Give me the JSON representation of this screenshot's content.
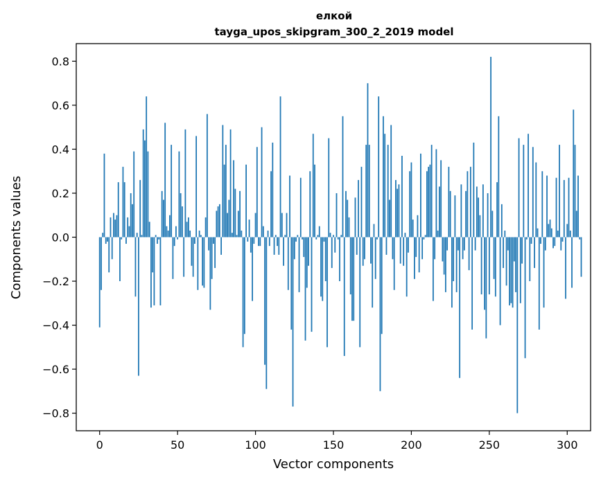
{
  "chart_data": {
    "type": "bar",
    "title": "елкой",
    "subtitle": "tayga_upos_skipgram_300_2_2019 model",
    "xlabel": "Vector components",
    "ylabel": "Components values",
    "xlim": [
      -15,
      315
    ],
    "ylim": [
      -0.88,
      0.88
    ],
    "xticks": [
      0,
      50,
      100,
      150,
      200,
      250,
      300
    ],
    "yticks": [
      -0.8,
      -0.6,
      -0.4,
      -0.2,
      0.0,
      0.2,
      0.4,
      0.6,
      0.8
    ],
    "ytick_labels": [
      "−0.8",
      "−0.6",
      "−0.4",
      "−0.2",
      "0.0",
      "0.2",
      "0.4",
      "0.6",
      "0.8"
    ],
    "bar_color": "#1f77b4",
    "values": [
      -0.41,
      -0.24,
      0.02,
      0.38,
      -0.03,
      -0.02,
      -0.16,
      0.09,
      -0.1,
      0.11,
      0.08,
      0.1,
      0.25,
      -0.2,
      -0.01,
      0.32,
      0.25,
      -0.03,
      0.09,
      0.05,
      0.2,
      0.15,
      0.39,
      -0.27,
      0.02,
      -0.63,
      0.26,
      0.01,
      0.49,
      0.44,
      0.64,
      0.39,
      0.07,
      -0.32,
      -0.16,
      -0.31,
      0.01,
      -0.03,
      -0.01,
      -0.31,
      0.21,
      0.17,
      0.52,
      0.05,
      0.03,
      0.1,
      0.42,
      -0.19,
      -0.04,
      0.05,
      -0.01,
      0.39,
      0.2,
      0.14,
      -0.18,
      0.49,
      0.07,
      0.09,
      0.03,
      -0.13,
      -0.18,
      -0.03,
      0.46,
      -0.24,
      0.03,
      0.01,
      -0.22,
      -0.23,
      0.09,
      0.56,
      -0.06,
      -0.33,
      -0.19,
      -0.03,
      -0.14,
      0.12,
      0.14,
      0.15,
      -0.08,
      0.51,
      0.33,
      0.42,
      0.11,
      0.17,
      0.49,
      0.02,
      0.35,
      0.22,
      0.01,
      0.12,
      0.21,
      0.03,
      -0.5,
      -0.44,
      0.33,
      -0.02,
      0.08,
      -0.07,
      -0.29,
      -0.03,
      0.11,
      0.41,
      -0.04,
      -0.04,
      0.5,
      0.05,
      -0.58,
      -0.69,
      0.03,
      -0.04,
      0.3,
      0.43,
      -0.08,
      0.01,
      -0.04,
      -0.08,
      0.64,
      0.11,
      -0.13,
      0.01,
      0.11,
      -0.24,
      0.28,
      -0.42,
      -0.77,
      -0.1,
      -0.02,
      0.01,
      -0.25,
      0.27,
      -0.01,
      -0.09,
      -0.47,
      -0.23,
      -0.13,
      0.3,
      -0.43,
      0.47,
      0.33,
      -0.01,
      0.01,
      0.05,
      -0.27,
      -0.29,
      -0.02,
      -0.2,
      -0.5,
      0.45,
      0.02,
      -0.14,
      0.01,
      -0.07,
      0.2,
      -0.01,
      -0.2,
      0.01,
      0.55,
      -0.54,
      0.21,
      0.17,
      0.09,
      -0.26,
      -0.38,
      -0.38,
      0.18,
      -0.08,
      0.26,
      -0.5,
      0.32,
      -0.13,
      -0.1,
      0.42,
      0.7,
      0.42,
      -0.12,
      -0.32,
      0.06,
      -0.19,
      -0.01,
      0.64,
      -0.7,
      -0.44,
      0.55,
      0.47,
      -0.08,
      0.42,
      0.17,
      0.51,
      -0.1,
      -0.24,
      0.26,
      0.22,
      0.24,
      -0.12,
      0.37,
      -0.13,
      0.02,
      -0.27,
      -0.07,
      0.3,
      0.34,
      0.08,
      -0.19,
      -0.09,
      0.1,
      -0.16,
      0.38,
      -0.1,
      -0.01,
      0.01,
      0.3,
      0.32,
      0.33,
      0.42,
      -0.29,
      -0.1,
      0.4,
      0.03,
      0.23,
      0.35,
      -0.11,
      -0.17,
      -0.25,
      -0.06,
      0.32,
      0.21,
      -0.32,
      -0.2,
      0.19,
      -0.25,
      -0.06,
      -0.64,
      0.24,
      -0.1,
      -0.06,
      0.21,
      0.3,
      -0.15,
      0.32,
      -0.42,
      0.43,
      -0.06,
      0.23,
      0.18,
      0.1,
      -0.26,
      0.24,
      -0.33,
      -0.46,
      0.2,
      -0.26,
      0.82,
      0.12,
      -0.19,
      -0.27,
      0.25,
      0.55,
      -0.4,
      0.15,
      -0.14,
      0.03,
      -0.22,
      -0.06,
      -0.31,
      -0.3,
      -0.32,
      -0.11,
      -0.25,
      -0.8,
      0.45,
      -0.3,
      -0.12,
      0.42,
      -0.55,
      -0.01,
      0.47,
      -0.2,
      -0.03,
      0.41,
      -0.14,
      0.34,
      0.04,
      -0.42,
      -0.03,
      0.3,
      -0.32,
      -0.06,
      0.28,
      0.06,
      0.08,
      0.04,
      -0.05,
      -0.04,
      0.27,
      0.03,
      0.42,
      -0.06,
      -0.02,
      0.26,
      -0.28,
      0.06,
      0.27,
      0.03,
      -0.23,
      0.58,
      0.42,
      0.12,
      0.28,
      -0.01,
      -0.18
    ]
  }
}
